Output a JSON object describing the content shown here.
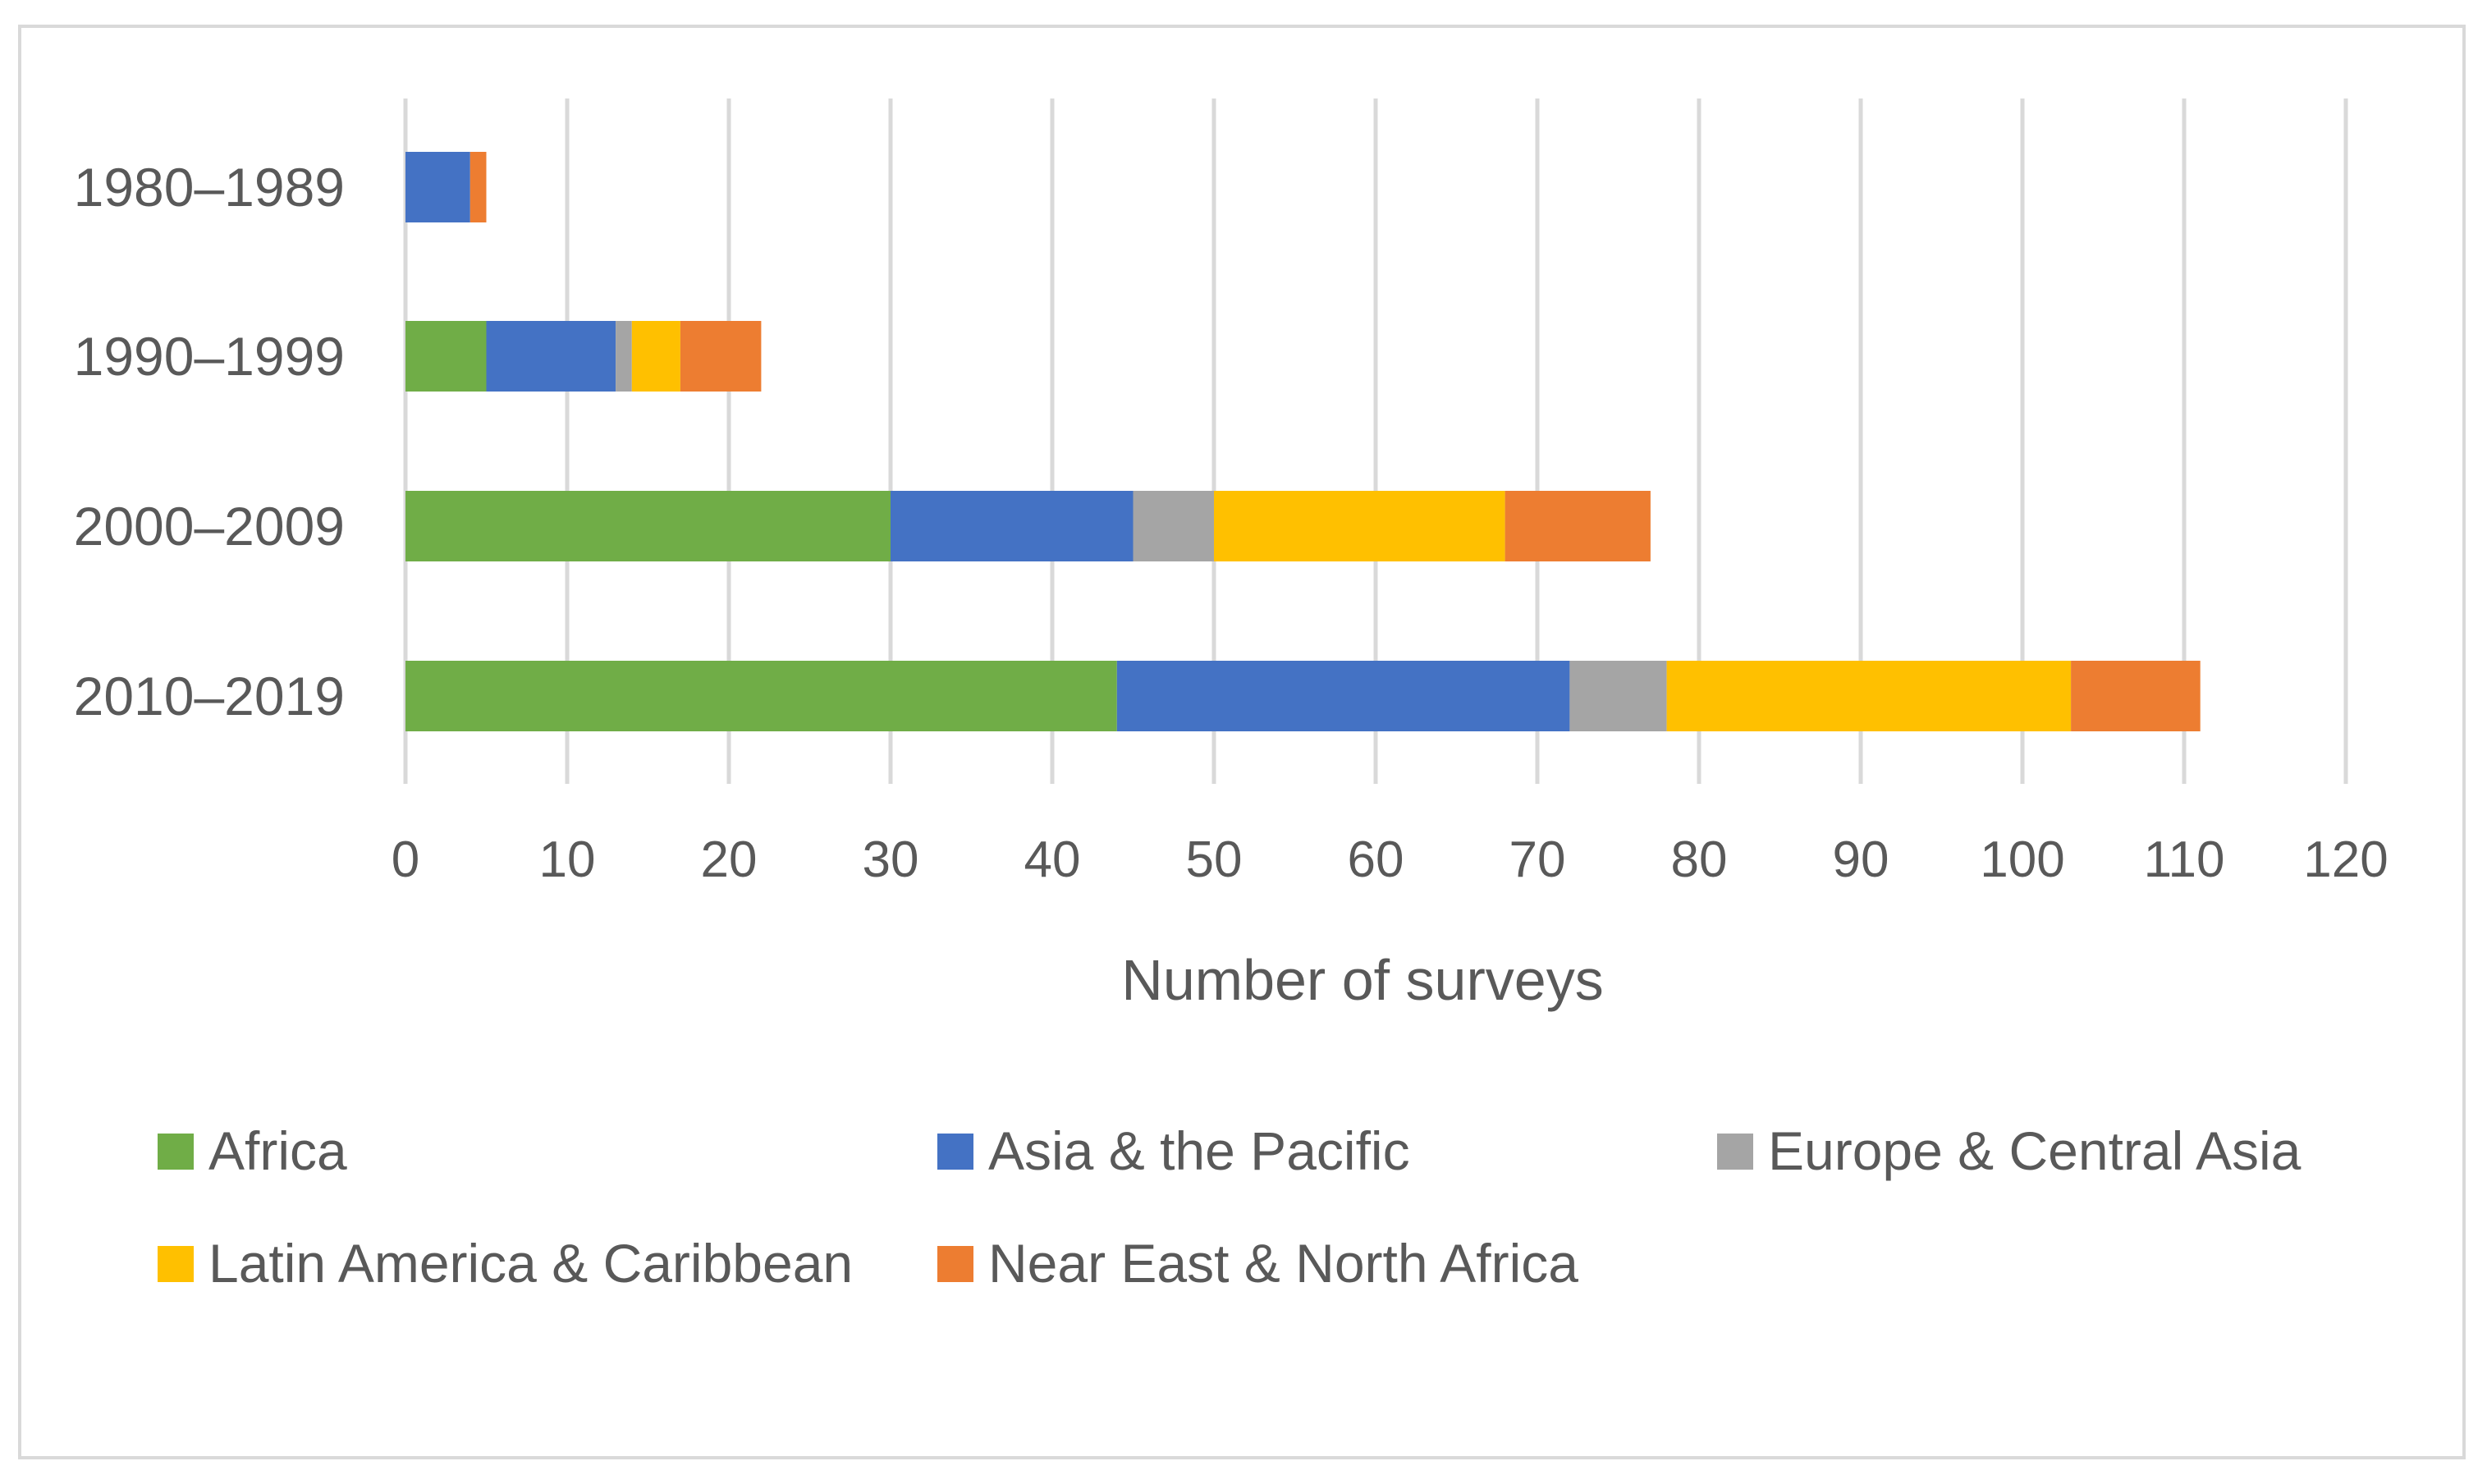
{
  "chart_data": {
    "type": "bar",
    "orientation": "horizontal",
    "stacked": true,
    "categories": [
      "1980–1989",
      "1990–1999",
      "2000–2009",
      "2010–2019"
    ],
    "series": [
      {
        "name": "Africa",
        "color": "#70ad47",
        "values": [
          0,
          5,
          30,
          44
        ]
      },
      {
        "name": "Asia & the Pacific",
        "color": "#4472c4",
        "values": [
          4,
          8,
          15,
          28
        ]
      },
      {
        "name": "Europe & Central Asia",
        "color": "#a5a5a5",
        "values": [
          0,
          1,
          5,
          6
        ]
      },
      {
        "name": "Latin America & Caribbean",
        "color": "#ffc000",
        "values": [
          0,
          3,
          18,
          25
        ]
      },
      {
        "name": "Near East & North Africa",
        "color": "#ed7d31",
        "values": [
          1,
          5,
          9,
          8
        ]
      }
    ],
    "xlabel": "Number of surveys",
    "ylabel": "",
    "xlim": [
      0,
      120
    ],
    "xticks": [
      0,
      10,
      20,
      30,
      40,
      50,
      60,
      70,
      80,
      90,
      100,
      110,
      120
    ],
    "grid": true,
    "legend_position": "bottom"
  }
}
